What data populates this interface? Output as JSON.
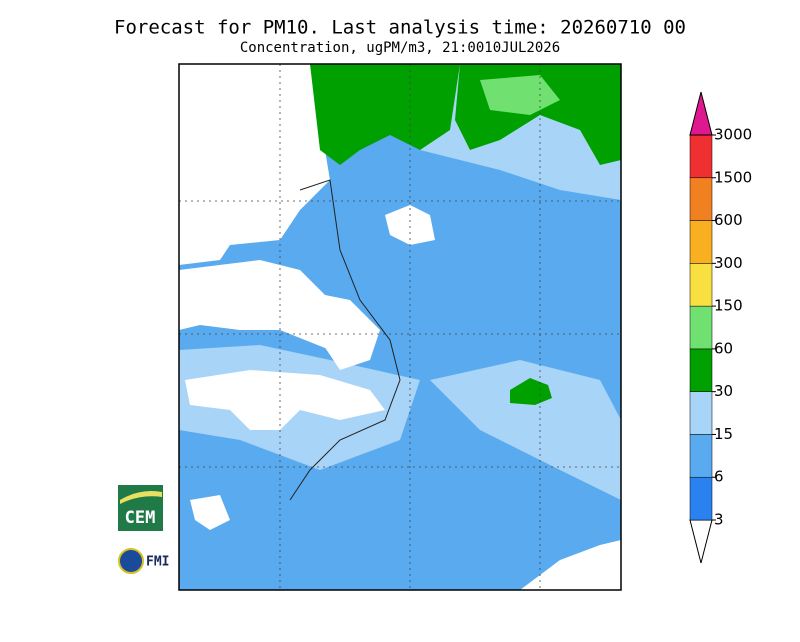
{
  "header": {
    "title": "Forecast for PM10. Last analysis time: 20260710 00",
    "subtitle": "Concentration, ugPM/m3, 21:0010JUL2026"
  },
  "legend": {
    "ticks": [
      3,
      6,
      15,
      30,
      60,
      150,
      300,
      600,
      1500,
      3000
    ],
    "colors": [
      "#ffffff",
      "#2a82f0",
      "#5aaaf0",
      "#a8d4f8",
      "#00a000",
      "#70e070",
      "#f8e040",
      "#f8b020",
      "#f08020",
      "#f03030",
      "#e01890"
    ]
  },
  "logos": {
    "cem": "CEM",
    "fmi": "FMI"
  }
}
